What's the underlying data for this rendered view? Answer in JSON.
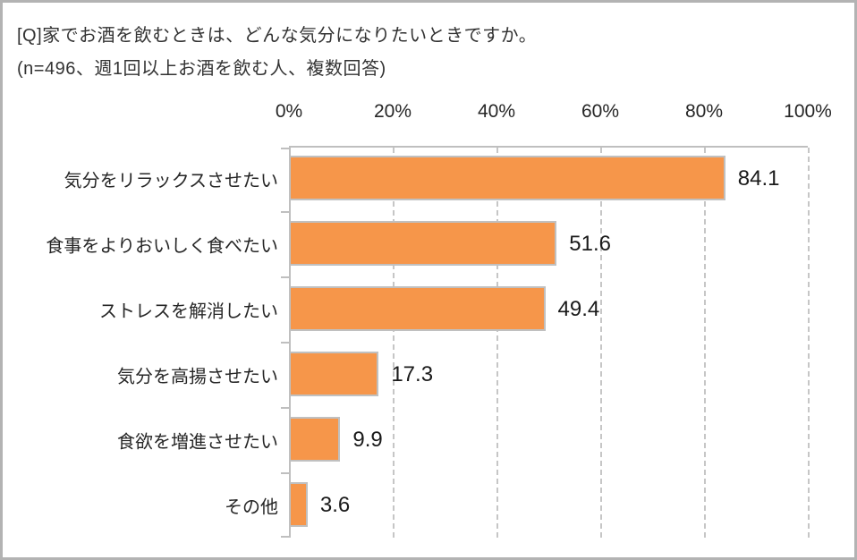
{
  "header": {
    "title": "[Q]家でお酒を飲むときは、どんな気分になりたいときですか。",
    "subtitle": "(n=496、週1回以上お酒を飲む人、複数回答)"
  },
  "chart_data": {
    "type": "bar",
    "orientation": "horizontal",
    "title": "[Q]家でお酒を飲むときは、どんな気分になりたいときですか。",
    "subtitle": "(n=496、週1回以上お酒を飲む人、複数回答)",
    "categories": [
      "気分をリラックスさせたい",
      "食事をよりおいしく食べたい",
      "ストレスを解消したい",
      "気分を高揚させたい",
      "食欲を増進させたい",
      "その他"
    ],
    "values": [
      84.1,
      51.6,
      49.4,
      17.3,
      9.9,
      3.6
    ],
    "value_labels": [
      "84.1",
      "51.6",
      "49.4",
      "17.3",
      "9.9",
      "3.6"
    ],
    "x_ticks": [
      0,
      20,
      40,
      60,
      80,
      100
    ],
    "x_tick_labels": [
      "0%",
      "20%",
      "40%",
      "60%",
      "80%",
      "100%"
    ],
    "xlim": [
      0,
      100
    ],
    "grid": "dashed-vertical",
    "legend": "none",
    "bar_color": "#f6964a",
    "bar_border_color": "#c0c0c0",
    "axis_color": "#bfbfbf",
    "text_color": "#262626"
  }
}
